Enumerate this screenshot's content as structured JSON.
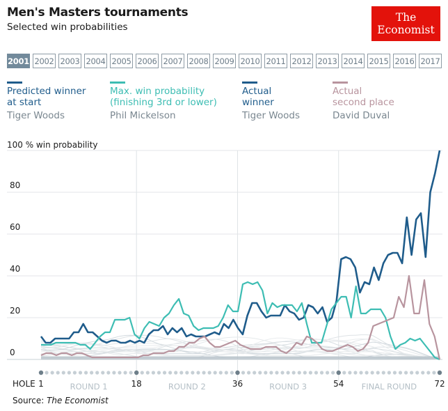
{
  "header": {
    "title": "Men's Masters tournaments",
    "subtitle": "Selected win probabilities",
    "logo_line1": "The",
    "logo_line2": "Economist"
  },
  "year_tabs": {
    "selected": "2001",
    "items": [
      "2001",
      "2002",
      "2003",
      "2004",
      "2005",
      "2006",
      "2007",
      "2008",
      "2009",
      "2010",
      "2011",
      "2012",
      "2013",
      "2014",
      "2015",
      "2016",
      "2017"
    ]
  },
  "legend": [
    {
      "label": "Predicted winner at start",
      "line1": "Predicted winner",
      "line2": "at start",
      "player": "Tiger Woods",
      "color": "#1f5c8b"
    },
    {
      "label": "Max. win probability (finishing 3rd or lower)",
      "line1": "Max. win probability",
      "line2": "(finishing 3rd or lower)",
      "player": "Phil Mickelson",
      "color": "#3dbdb3"
    },
    {
      "label": "Actual winner",
      "line1": "Actual",
      "line2": "winner",
      "player": "Tiger Woods",
      "color": "#1f5c8b"
    },
    {
      "label": "Actual second place",
      "line1": "Actual",
      "line2": "second place",
      "player": "David Duval",
      "color": "#b8949e"
    }
  ],
  "source": {
    "prefix": "Source: ",
    "name": "The Economist"
  },
  "chart_data": {
    "type": "line",
    "title": "Men's Masters tournaments",
    "subtitle": "Selected win probabilities",
    "ylabel": "100 % win probability",
    "xlabel": "HOLE",
    "ylim": [
      0,
      100
    ],
    "xlim": [
      1,
      72
    ],
    "yticks": [
      0,
      20,
      40,
      60,
      80,
      100
    ],
    "ytick_labels": [
      "0",
      "20",
      "40",
      "60",
      "80",
      "100 % win probability"
    ],
    "xticks": [
      1,
      18,
      36,
      54,
      72
    ],
    "xtick_labels": [
      "1",
      "18",
      "36",
      "54",
      "72"
    ],
    "round_labels": [
      {
        "label": "ROUND 1",
        "center_hole": 9.5
      },
      {
        "label": "ROUND 2",
        "center_hole": 27
      },
      {
        "label": "ROUND 3",
        "center_hole": 45
      },
      {
        "label": "FINAL ROUND",
        "center_hole": 63
      }
    ],
    "grid": true,
    "legend_position": "top",
    "series": [
      {
        "name": "Tiger Woods (Predicted winner at start / Actual winner)",
        "color": "#1f5c8b",
        "values": [
          11,
          8,
          8,
          10,
          10,
          10,
          10,
          13,
          13,
          17,
          13,
          13,
          11,
          9,
          8,
          9,
          9,
          8,
          8,
          9,
          8,
          9,
          8,
          12,
          14,
          14,
          16,
          12,
          15,
          13,
          15,
          11,
          12,
          11,
          11,
          11,
          12,
          13,
          12,
          17,
          15,
          19,
          15,
          12,
          21,
          27,
          27,
          23,
          20,
          21,
          21,
          21,
          26,
          23,
          22,
          19,
          20,
          26,
          25,
          22,
          25,
          18,
          20,
          28,
          48,
          49,
          48,
          44,
          32,
          37,
          36,
          44,
          38,
          46,
          50,
          51,
          51,
          46,
          68,
          50,
          67,
          70,
          49,
          80,
          89,
          100
        ]
      },
      {
        "name": "Phil Mickelson (Max. win probability, finishing 3rd or lower)",
        "color": "#3dbdb3",
        "values": [
          7,
          7,
          7,
          8,
          8,
          8,
          8,
          8,
          7,
          7,
          5,
          8,
          11,
          13,
          13,
          19,
          19,
          19,
          20,
          12,
          10,
          15,
          18,
          17,
          16,
          20,
          22,
          26,
          29,
          22,
          21,
          16,
          14,
          15,
          15,
          15,
          16,
          20,
          26,
          23,
          23,
          36,
          37,
          36,
          37,
          33,
          22,
          27,
          25,
          26,
          26,
          26,
          23,
          27,
          17,
          8,
          8,
          8,
          16,
          24,
          27,
          30,
          30,
          20,
          35,
          22,
          22,
          24,
          24,
          24,
          20,
          11,
          5,
          7,
          8,
          10,
          9,
          10,
          7,
          4,
          1,
          0
        ]
      },
      {
        "name": "David Duval (Actual second place)",
        "color": "#b8949e",
        "values": [
          2,
          3,
          3,
          2,
          3,
          3,
          2,
          3,
          3,
          2,
          1,
          1,
          1,
          1,
          1,
          1,
          1,
          1,
          1,
          1,
          2,
          2,
          3,
          3,
          3,
          4,
          4,
          6,
          6,
          8,
          8,
          10,
          11,
          8,
          6,
          6,
          7,
          8,
          9,
          7,
          6,
          5,
          5,
          5,
          6,
          6,
          6,
          4,
          3,
          5,
          8,
          7,
          11,
          10,
          8,
          5,
          4,
          4,
          5,
          6,
          7,
          6,
          4,
          5,
          8,
          16,
          17,
          18,
          19,
          20,
          30,
          25,
          40,
          22,
          22,
          38,
          17,
          11,
          0
        ]
      },
      {
        "name": "Other players",
        "color": "#d6dce0",
        "values": null
      }
    ]
  }
}
